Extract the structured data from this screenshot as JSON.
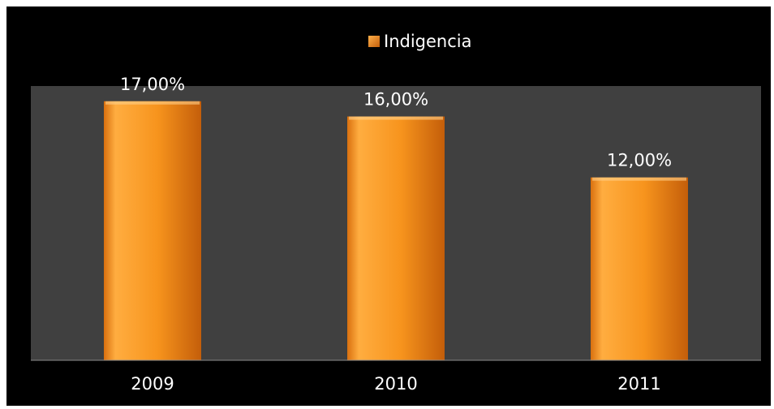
{
  "chart_data": {
    "type": "bar",
    "categories": [
      "2009",
      "2010",
      "2011"
    ],
    "series": [
      {
        "name": "Indigencia",
        "values": [
          17.0,
          16.0,
          12.0
        ]
      }
    ],
    "data_labels": [
      "17,00%",
      "16,00%",
      "12,00%"
    ],
    "ylim": [
      0,
      18
    ],
    "grid": false,
    "legend_position": "top",
    "colors": {
      "background": "#000000",
      "plot_area": "#404040",
      "bar": "#f7941d",
      "bar_light": "#ffb04a",
      "bar_dark": "#c45e0a",
      "text": "#ffffff"
    }
  }
}
